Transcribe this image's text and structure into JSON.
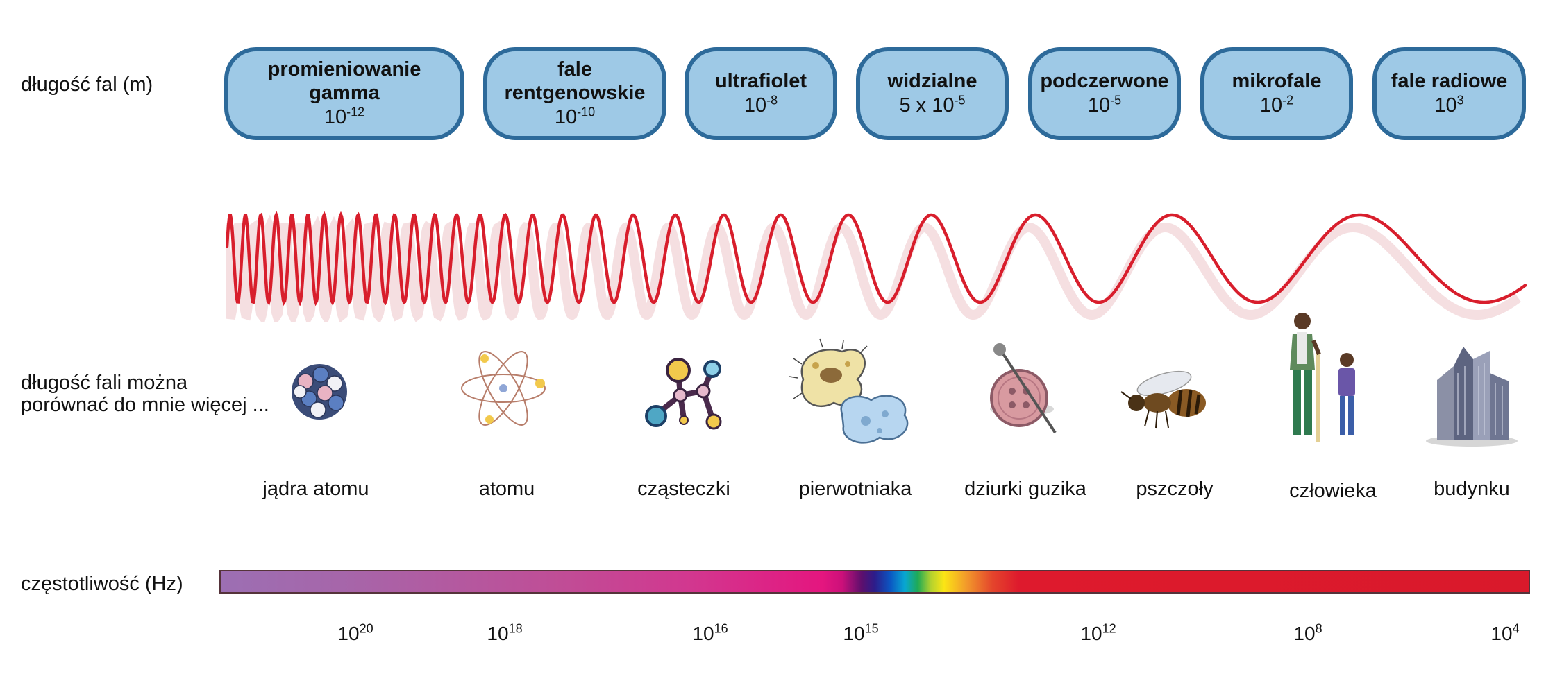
{
  "labels": {
    "wavelength": "długość fal (m)",
    "comparison_line1": "długość fali można",
    "comparison_line2": "porównać do mnie więcej ...",
    "frequency": "częstotliwość (Hz)"
  },
  "bands": [
    {
      "name_line1": "promieniowanie",
      "name_line2": "gamma",
      "mantissa": "",
      "base": "10",
      "exp": "-12"
    },
    {
      "name_line1": "fale",
      "name_line2": "rentgenowskie",
      "mantissa": "",
      "base": "10",
      "exp": "-10"
    },
    {
      "name_line1": "ultrafiolet",
      "name_line2": "",
      "mantissa": "",
      "base": "10",
      "exp": "-8"
    },
    {
      "name_line1": "widzialne",
      "name_line2": "",
      "mantissa": "5 x ",
      "base": "10",
      "exp": "-5"
    },
    {
      "name_line1": "podczerwone",
      "name_line2": "",
      "mantissa": "",
      "base": "10",
      "exp": "-5"
    },
    {
      "name_line1": "mikrofale",
      "name_line2": "",
      "mantissa": "",
      "base": "10",
      "exp": "-2"
    },
    {
      "name_line1": "fale radiowe",
      "name_line2": "",
      "mantissa": "",
      "base": "10",
      "exp": "3"
    }
  ],
  "objects": [
    {
      "label": "jądra atomu",
      "icon": "nucleus-icon"
    },
    {
      "label": "atomu",
      "icon": "atom-icon"
    },
    {
      "label": "cząsteczki",
      "icon": "molecule-icon"
    },
    {
      "label": "pierwotniaka",
      "icon": "protozoa-icon"
    },
    {
      "label": "dziurki guzika",
      "icon": "button-pin-icon"
    },
    {
      "label": "pszczoły",
      "icon": "bee-icon"
    },
    {
      "label": "człowieka",
      "icon": "humans-icon"
    },
    {
      "label": "budynku",
      "icon": "building-icon"
    }
  ],
  "frequency_ticks": [
    {
      "base": "10",
      "exp": "20"
    },
    {
      "base": "10",
      "exp": "18"
    },
    {
      "base": "10",
      "exp": "16"
    },
    {
      "base": "10",
      "exp": "15"
    },
    {
      "base": "10",
      "exp": "12"
    },
    {
      "base": "10",
      "exp": "8"
    },
    {
      "base": "10",
      "exp": "4"
    }
  ],
  "colors": {
    "band_fill": "#9ec9e6",
    "band_border": "#2d6a9a",
    "wave": "#d81e2c"
  }
}
